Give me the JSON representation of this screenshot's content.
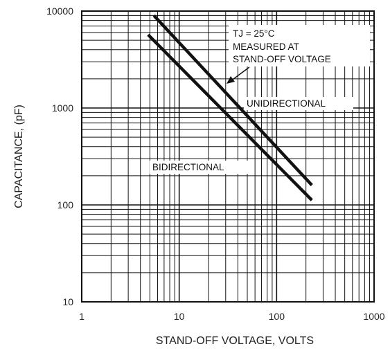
{
  "chart_data": {
    "type": "line",
    "xlabel": "STAND-OFF VOLTAGE, VOLTS",
    "ylabel": "CAPACITANCE, (pF)",
    "xscale": "log",
    "yscale": "log",
    "xlim": [
      1,
      1000
    ],
    "ylim": [
      10,
      10000
    ],
    "grid": true,
    "x_ticks": [
      {
        "value": 1,
        "label": "1"
      },
      {
        "value": 10,
        "label": "10"
      },
      {
        "value": 100,
        "label": "100"
      },
      {
        "value": 1000,
        "label": "1000"
      }
    ],
    "y_ticks": [
      {
        "value": 10,
        "label": "10"
      },
      {
        "value": 100,
        "label": "100"
      },
      {
        "value": 1000,
        "label": "1000"
      },
      {
        "value": 10000,
        "label": "10000"
      }
    ],
    "series": [
      {
        "name": "UNIDIRECTIONAL",
        "x": [
          5.5,
          230
        ],
        "y": [
          9000,
          160
        ]
      },
      {
        "name": "BIDIRECTIONAL",
        "x": [
          4.8,
          230
        ],
        "y": [
          5700,
          112
        ]
      }
    ],
    "annotations": {
      "condition_line1": "TJ = 25°C",
      "condition_line2": "MEASURED AT",
      "condition_line3": "STAND-OFF VOLTAGE"
    }
  }
}
